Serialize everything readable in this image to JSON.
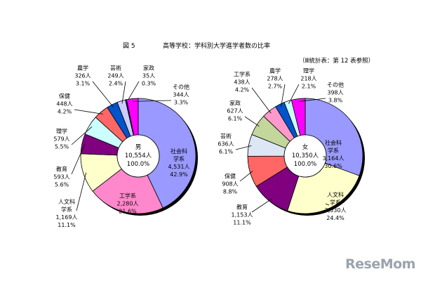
{
  "header": {
    "figure": "図 5",
    "title": "高等学校：学科別大学進学者数の比率",
    "reference": "（Ⅲ統計表：第 12 表参照）"
  },
  "watermark": "ReseMom",
  "chart_data": [
    {
      "type": "pie",
      "donut": true,
      "center": {
        "label": "男",
        "total": "10,554人",
        "pct": "100.0%"
      },
      "slices": [
        {
          "name": "社会科\n学系",
          "count": "4,531人",
          "pct": "42.9%",
          "value": 4531,
          "color": "#9999ff"
        },
        {
          "name": "工学系",
          "count": "2,280人",
          "pct": "21.6%",
          "value": 2280,
          "color": "#ff88cc"
        },
        {
          "name": "人文科\n学系",
          "count": "1,169人",
          "pct": "11.1%",
          "value": 1169,
          "color": "#ffffcc"
        },
        {
          "name": "教育",
          "count": "593人",
          "pct": "5.6%",
          "value": 593,
          "color": "#800080"
        },
        {
          "name": "理学",
          "count": "579人",
          "pct": "5.5%",
          "value": 579,
          "color": "#ccffff"
        },
        {
          "name": "保健",
          "count": "448人",
          "pct": "4.2%",
          "value": 448,
          "color": "#ff6666"
        },
        {
          "name": "農学",
          "count": "326人",
          "pct": "3.1%",
          "value": 326,
          "color": "#0055cc"
        },
        {
          "name": "芸術",
          "count": "249人",
          "pct": "2.4%",
          "value": 249,
          "color": "#ccccff"
        },
        {
          "name": "家政",
          "count": "35人",
          "pct": "0.3%",
          "value": 35,
          "color": "#000080"
        },
        {
          "name": "その他",
          "count": "344人",
          "pct": "3.3%",
          "value": 344,
          "color": "#ff00ff"
        }
      ]
    },
    {
      "type": "pie",
      "donut": true,
      "center": {
        "label": "女",
        "total": "10,350人",
        "pct": "100.0%"
      },
      "slices": [
        {
          "name": "社会科\n学系",
          "count": "3,164人",
          "pct": "30.6%",
          "value": 3164,
          "color": "#9999ff"
        },
        {
          "name": "人文科\n学系",
          "count": "2,530人",
          "pct": "24.4%",
          "value": 2530,
          "color": "#ffffcc"
        },
        {
          "name": "教育",
          "count": "1,153人",
          "pct": "11.1%",
          "value": 1153,
          "color": "#800080"
        },
        {
          "name": "保健",
          "count": "908人",
          "pct": "8.8%",
          "value": 908,
          "color": "#ff6666"
        },
        {
          "name": "芸術",
          "count": "636人",
          "pct": "6.1%",
          "value": 636,
          "color": "#dde6f5"
        },
        {
          "name": "家政",
          "count": "627人",
          "pct": "6.1%",
          "value": 627,
          "color": "#c3d69b"
        },
        {
          "name": "工学系",
          "count": "438人",
          "pct": "4.2%",
          "value": 438,
          "color": "#ff99cc"
        },
        {
          "name": "農学",
          "count": "278人",
          "pct": "2.7%",
          "value": 278,
          "color": "#0055cc"
        },
        {
          "name": "理学",
          "count": "218人",
          "pct": "2.1%",
          "value": 218,
          "color": "#ccffff"
        },
        {
          "name": "その他",
          "count": "398人",
          "pct": "3.8%",
          "value": 398,
          "color": "#ff00ff"
        }
      ]
    }
  ]
}
